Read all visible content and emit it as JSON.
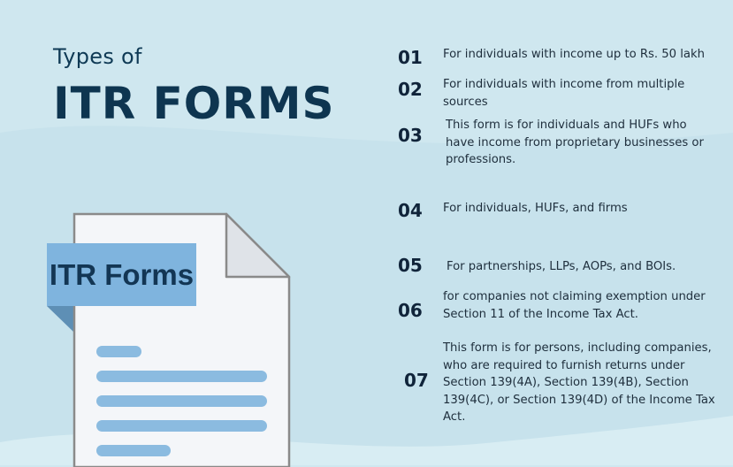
{
  "header": {
    "pre_title": "Types of",
    "title": "ITR FORMS"
  },
  "illustration": {
    "label": "ITR Forms"
  },
  "items": [
    {
      "number": "01",
      "text": "For individuals with income up to Rs. 50 lakh"
    },
    {
      "number": "02",
      "text": "For individuals with income from multiple sources"
    },
    {
      "number": "03",
      "text": "This form is for individuals and HUFs who have income from proprietary businesses or professions."
    },
    {
      "number": "04",
      "text": "For individuals, HUFs, and firms"
    },
    {
      "number": "05",
      "text": "For partnerships, LLPs,  AOPs, and  BOIs."
    },
    {
      "number": "06",
      "text": "for companies not claiming exemption under Section 11 of the Income Tax Act."
    },
    {
      "number": "07",
      "text": "This form is for persons, including companies, who are required to furnish returns under Section 139(4A), Section 139(4B), Section 139(4C), or Section 139(4D) of the Income Tax Act."
    }
  ],
  "colors": {
    "background": "#cfe7ef",
    "title": "#0e3550",
    "label_box": "#7fb4de",
    "text_lines": "#8bbbe0"
  }
}
